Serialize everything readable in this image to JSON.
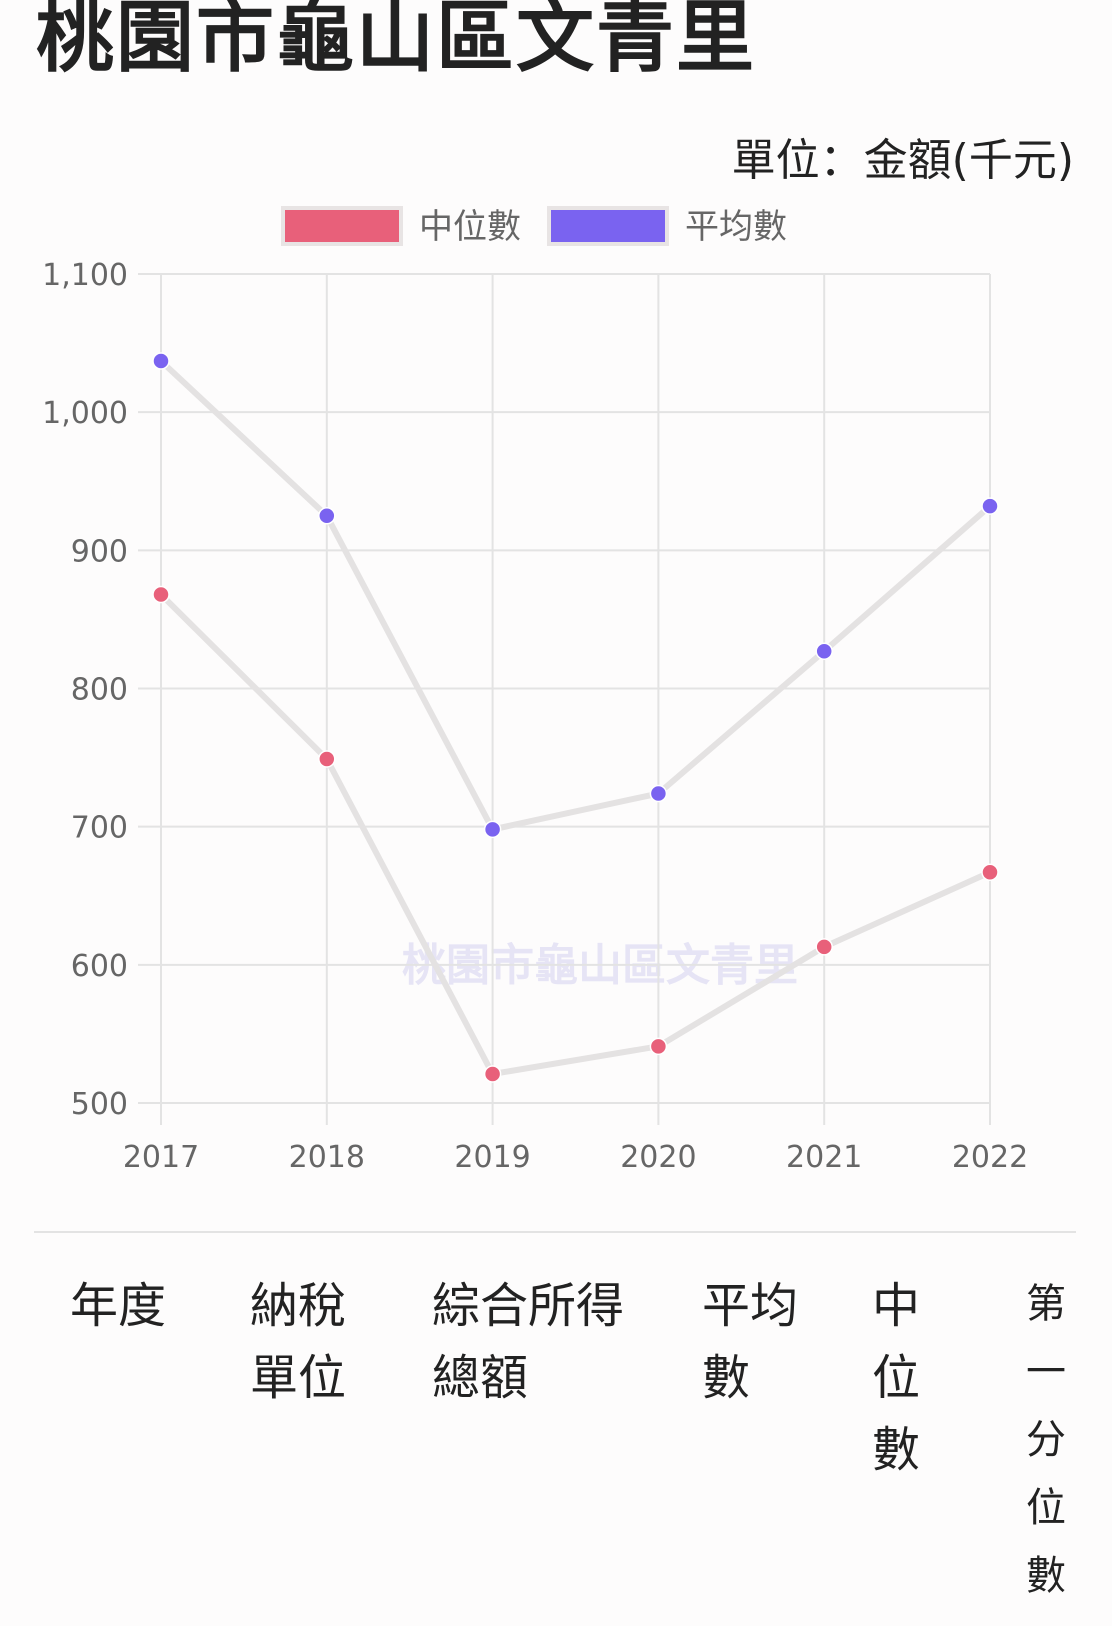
{
  "page": {
    "title": "桃園市龜山區文青里",
    "unit": "單位：金額(千元)"
  },
  "watermark": "桃園市龜山區文青里",
  "colors": {
    "median": "#e8607a",
    "average": "#7a63f0",
    "line": "#e4e2e2"
  },
  "chart_data": {
    "type": "line",
    "x": [
      "2017",
      "2018",
      "2019",
      "2020",
      "2021",
      "2022"
    ],
    "series": [
      {
        "name": "中位數",
        "values": [
          868,
          749,
          521,
          541,
          613,
          667
        ]
      },
      {
        "name": "平均數",
        "values": [
          1037,
          925,
          698,
          724,
          827,
          932
        ]
      }
    ],
    "ylim": [
      500,
      1100
    ],
    "yticks": [
      "500",
      "600",
      "700",
      "800",
      "900",
      "1,000",
      "1,100"
    ],
    "grid": true,
    "legend": "top-center"
  },
  "table": {
    "headers": [
      {
        "lines": [
          "年度"
        ]
      },
      {
        "lines": [
          "納稅",
          "單位"
        ]
      },
      {
        "lines": [
          "綜合所得",
          "總額"
        ]
      },
      {
        "lines": [
          "平均",
          "數"
        ]
      },
      {
        "lines": [
          "中",
          "位",
          "數"
        ]
      },
      {
        "lines": [
          "第",
          "一",
          "分",
          "位",
          "數"
        ]
      }
    ]
  }
}
